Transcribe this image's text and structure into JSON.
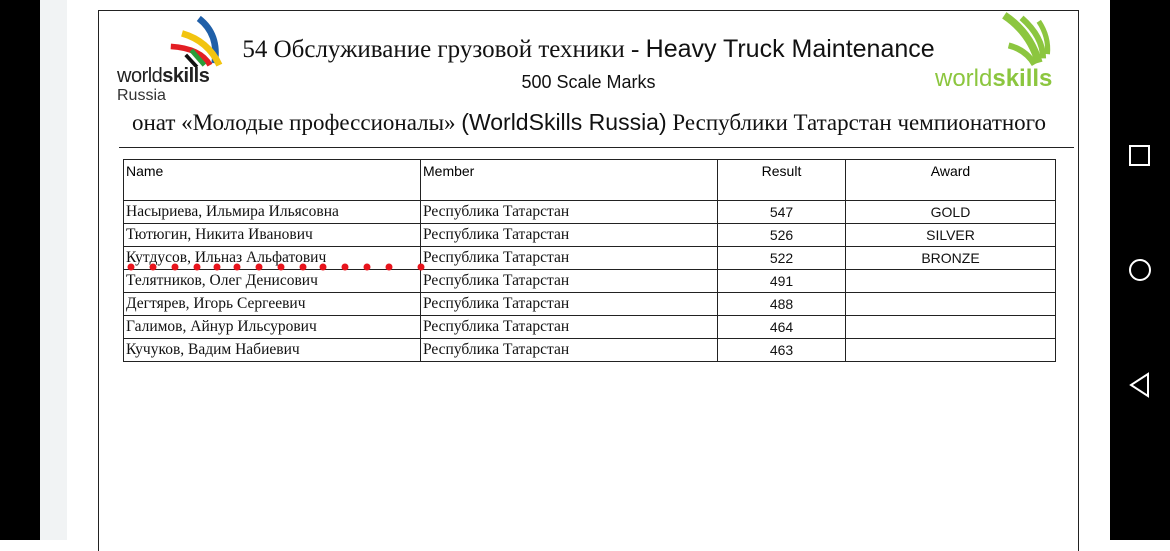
{
  "document": {
    "title_ru": "54 Обслуживание грузовой техники - ",
    "title_en": "Heavy Truck Maintenance",
    "subtitle": "500 Scale Marks",
    "championship_pre": "онат «Молодые профессионалы» ",
    "championship_en": "(WorldSkills Russia)",
    "championship_post": " Республики Татарстан чемпионатного",
    "logo_left": {
      "word1": "world",
      "word2": "skills",
      "word3": "Russia"
    },
    "logo_right": {
      "word1": "world",
      "word2": "skills",
      "color": "#8cc63f"
    }
  },
  "table": {
    "headers": [
      "Name",
      "Member",
      "Result",
      "Award"
    ],
    "rows": [
      [
        "Насыриева, Ильмира Ильясовна",
        "Республика Татарстан",
        "547",
        "GOLD"
      ],
      [
        "Тютюгин, Никита Иванович",
        "Республика Татарстан",
        "526",
        "SILVER"
      ],
      [
        "Кутдусов, Ильназ Альфатович",
        "Республика Татарстан",
        "522",
        "BRONZE"
      ],
      [
        "Телятников, Олег Денисович",
        "Республика Татарстан",
        "491",
        ""
      ],
      [
        "Дегтярев, Игорь Сергеевич",
        "Республика Татарстан",
        "488",
        ""
      ],
      [
        "Галимов, Айнур Ильсурович",
        "Республика Татарстан",
        "464",
        ""
      ],
      [
        "Кучуков, Вадим Набиевич",
        "Республика Татарстан",
        "463",
        ""
      ]
    ]
  },
  "annotation": {
    "color": "#e8141c"
  },
  "nav": {
    "icons": [
      "recents-icon",
      "home-icon",
      "back-icon"
    ]
  }
}
